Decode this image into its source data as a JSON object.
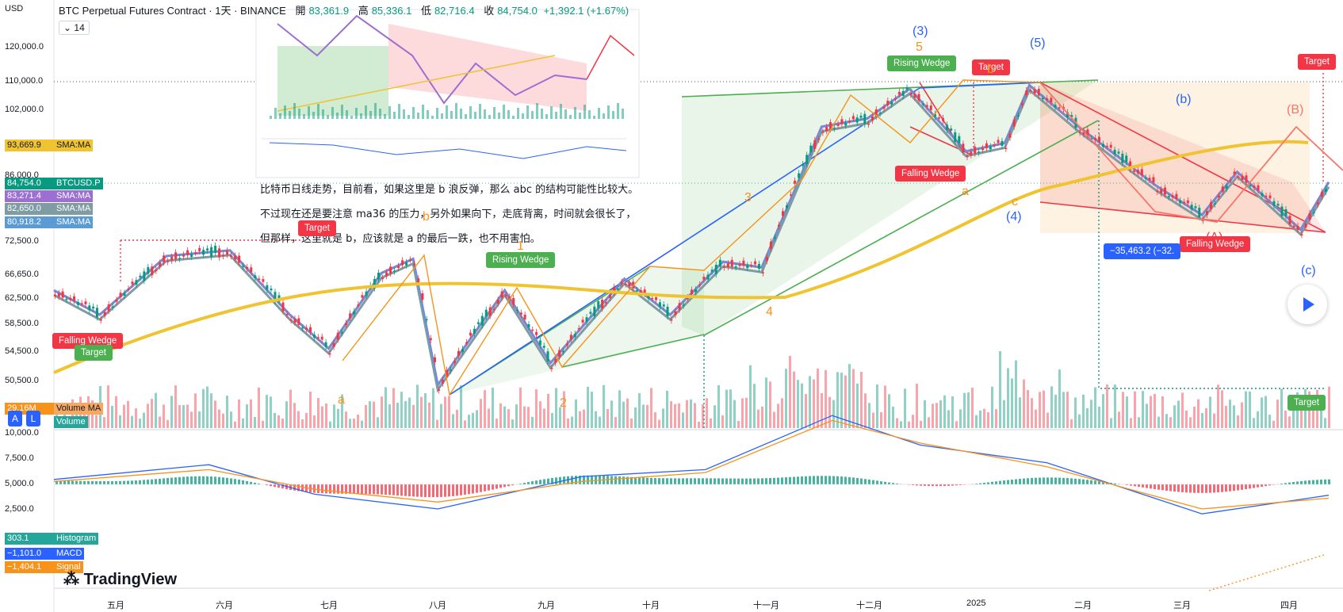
{
  "header": {
    "currency": "USD",
    "title": "BTC Perpetual Futures Contract · 1天 · BINANCE",
    "ohlc": [
      {
        "k": "開",
        "v": "83,361.9"
      },
      {
        "k": "高",
        "v": "85,336.1"
      },
      {
        "k": "低",
        "v": "82,716.4"
      },
      {
        "k": "收",
        "v": "84,754.0"
      }
    ],
    "change": "+1,392.1 (+1.67%)",
    "interval": "14"
  },
  "price_labels": [
    {
      "text": "93,669.9",
      "sub": "SMA:MA",
      "bg": "#f0c330",
      "fg": "#131722"
    },
    {
      "text": "84,754.0",
      "sub": "BTCUSD.P",
      "bg": "#089981",
      "fg": "#ffffff"
    },
    {
      "text": "83,271.4",
      "sub": "SMA:MA",
      "bg": "#9c6fd0",
      "fg": "#ffffff"
    },
    {
      "text": "82,650.0",
      "sub": "SMA:MA",
      "bg": "#7f9ba3",
      "fg": "#ffffff"
    },
    {
      "text": "80,918.2",
      "sub": "SMA:MA",
      "bg": "#5b9bd5",
      "fg": "#ffffff"
    }
  ],
  "indicator_labels": {
    "volume_ma": "Volume MA",
    "volume": "Volume",
    "volume_ma_value": "29.16M",
    "histogram_value": "303.1",
    "histogram": "Histogram",
    "macd_value": "−1,101.0",
    "macd": "MACD",
    "signal_value": "−1,404.1",
    "signal": "Signal"
  },
  "buttons": {
    "a": "A",
    "l": "L"
  },
  "brand": "TradingView",
  "note_lines": [
    "比特币日线走势，目前看，如果这里是 b 浪反弹，那么 abc 的结构可能性比较大。",
    "不过现在还是要注意 ma36 的压力，另外如果向下，走底背离，时间就会很长了，",
    "但那样，这里就是 b，应该就是 a 的最后一跌，也不用害怕。"
  ],
  "tags": [
    {
      "text": "Rising Wedge",
      "color": "#4caf50"
    },
    {
      "text": "Rising Wedge",
      "color": "#4caf50"
    },
    {
      "text": "Falling Wedge",
      "color": "#f23645"
    },
    {
      "text": "Falling Wedge",
      "color": "#f23645"
    },
    {
      "text": "Falling Wedge",
      "color": "#f23645"
    },
    {
      "text": "Target",
      "color": "#f23645"
    },
    {
      "text": "Target",
      "color": "#f23645"
    },
    {
      "text": "Target",
      "color": "#f23645"
    },
    {
      "text": "Target",
      "color": "#4caf50"
    },
    {
      "text": "Target",
      "color": "#4caf50"
    },
    {
      "text": "−35,463.2 (−32.",
      "color": "#2962ff"
    }
  ],
  "wave_labels": [
    {
      "text": "(3)",
      "color": "#2962ff"
    },
    {
      "text": "5",
      "color": "#f7931a"
    },
    {
      "text": "(5)",
      "color": "#2962ff"
    },
    {
      "text": "(b)",
      "color": "#2962ff"
    },
    {
      "text": "(B)",
      "color": "#f7766a"
    },
    {
      "text": "(4)",
      "color": "#2962ff"
    },
    {
      "text": "(c)",
      "color": "#2962ff"
    },
    {
      "text": "(A)",
      "color": "#f23645"
    },
    {
      "text": "3",
      "color": "#f7931a"
    },
    {
      "text": "4",
      "color": "#f7931a"
    },
    {
      "text": "a",
      "color": "#f7931a"
    },
    {
      "text": "c",
      "color": "#f7931a"
    },
    {
      "text": "b",
      "color": "#f7931a"
    },
    {
      "text": "1",
      "color": "#f7931a"
    },
    {
      "text": "2",
      "color": "#f7931a"
    },
    {
      "text": "a",
      "color": "#f7931a"
    },
    {
      "text": "b",
      "color": "#f7931a"
    }
  ],
  "chart_data": [
    {
      "type": "line",
      "title": "BTC Perpetual Futures Contract · 1天 · BINANCE",
      "x_ticks": [
        "五月",
        "六月",
        "七月",
        "八月",
        "九月",
        "十月",
        "十一月",
        "十二月",
        "2025",
        "二月",
        "三月",
        "四月"
      ],
      "y_ticks": [
        "120,000.0",
        "110,000.0",
        "102,000.0",
        "86,000.0",
        "72,500.0",
        "66,650.0",
        "62,500.0",
        "58,500.0",
        "54,500.0",
        "50,500.0"
      ],
      "x": [
        "2024-04-18",
        "2024-05-01",
        "2024-05-20",
        "2024-06-07",
        "2024-06-24",
        "2024-07-05",
        "2024-07-20",
        "2024-07-29",
        "2024-08-05",
        "2024-08-24",
        "2024-09-06",
        "2024-09-27",
        "2024-10-10",
        "2024-10-25",
        "2024-11-05",
        "2024-11-22",
        "2024-12-05",
        "2024-12-17",
        "2025-01-02",
        "2025-01-13",
        "2025-01-20",
        "2025-02-03",
        "2025-02-25",
        "2025-03-10",
        "2025-03-20",
        "2025-04-07",
        "2025-04-15"
      ],
      "series": [
        {
          "name": "BTCUSD.P",
          "values": [
            64000,
            60000,
            70000,
            71000,
            60000,
            55000,
            67000,
            69500,
            50000,
            64000,
            53000,
            66000,
            60000,
            69000,
            68000,
            98000,
            100000,
            108000,
            92000,
            94000,
            109000,
            98000,
            84000,
            78000,
            87000,
            75000,
            84754
          ]
        }
      ],
      "last": {
        "price": 84754.0,
        "sma_a": 93669.9,
        "sma_b": 83271.4,
        "sma_c": 82650.0,
        "sma_d": 80918.2
      }
    },
    {
      "type": "bar",
      "title": "Volume",
      "note": "daily volume bars with Volume MA",
      "volume_ma_last": "29.16M"
    },
    {
      "type": "line",
      "title": "MACD",
      "y_ticks": [
        "10,000.0",
        "7,500.0",
        "5,000.0",
        "2,500.0"
      ],
      "x": [
        "2024-04-18",
        "2024-06-01",
        "2024-07-01",
        "2024-08-05",
        "2024-09-15",
        "2024-10-20",
        "2024-11-25",
        "2024-12-20",
        "2025-01-25",
        "2025-03-10",
        "2025-04-15"
      ],
      "series": [
        {
          "name": "MACD",
          "values": [
            500,
            2000,
            -1000,
            -2500,
            800,
            1500,
            7000,
            4000,
            2200,
            -3000,
            -1101
          ]
        },
        {
          "name": "Signal",
          "values": [
            300,
            1500,
            -500,
            -1800,
            300,
            1200,
            6500,
            4200,
            1800,
            -2500,
            -1404
          ]
        }
      ],
      "histogram_last": 303.1
    }
  ]
}
